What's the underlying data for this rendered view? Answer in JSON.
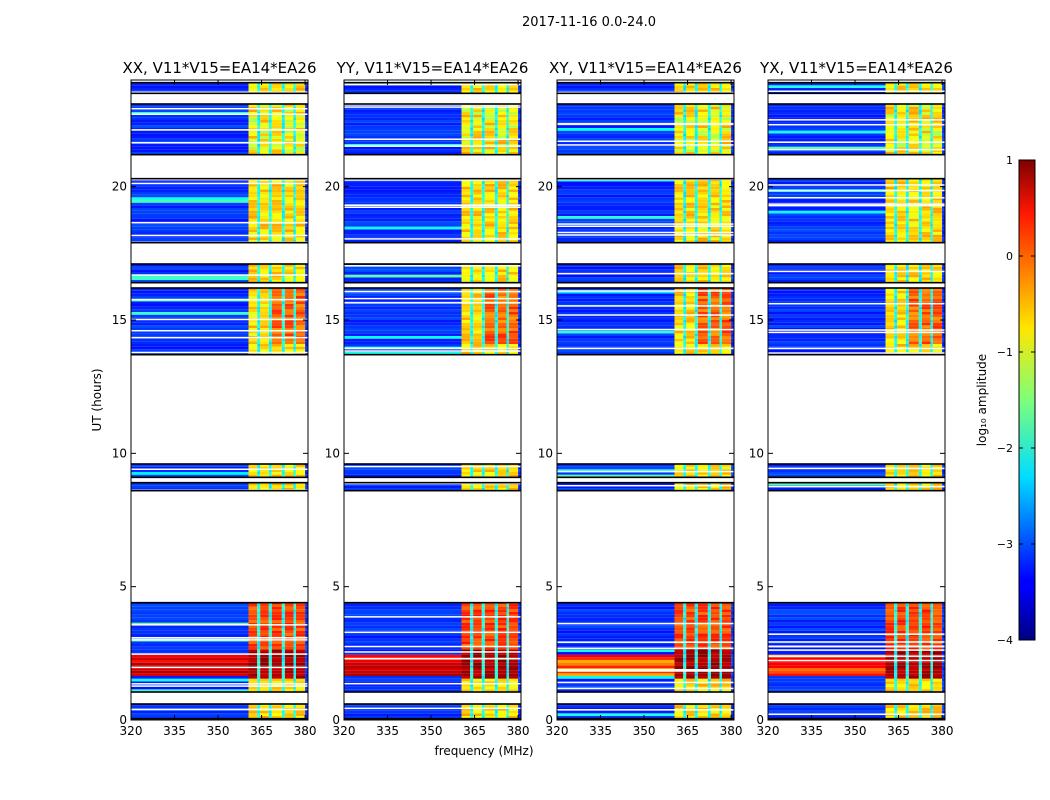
{
  "chart_data": {
    "type": "heatmap",
    "suptitle": "2017-11-16 0.0-24.0",
    "xlabel": "frequency (MHz)",
    "ylabel": "UT (hours)",
    "xlim": [
      320,
      381
    ],
    "ylim": [
      0,
      24
    ],
    "xticks": [
      320,
      335,
      350,
      365,
      380
    ],
    "xtick_labels": [
      "320",
      "335",
      "350",
      "365",
      "380"
    ],
    "yticks": [
      0,
      5,
      10,
      15,
      20
    ],
    "ytick_labels": [
      "0",
      "5",
      "10",
      "15",
      "20"
    ],
    "panels": [
      {
        "title": "XX, V11*V15=EA14*EA26"
      },
      {
        "title": "YY, V11*V15=EA14*EA26"
      },
      {
        "title": "XY, V11*V15=EA14*EA26"
      },
      {
        "title": "YX, V11*V15=EA14*EA26"
      }
    ],
    "colorbar": {
      "label": "log₁₀ amplitude",
      "range": [
        -4,
        1
      ],
      "ticks": [
        -4,
        -3,
        -2,
        -1,
        0,
        1
      ],
      "tick_labels": [
        "−4",
        "−3",
        "−2",
        "−1",
        "0",
        "1"
      ],
      "colormap": "jet"
    },
    "data_segments_ut_hours": [
      [
        0.05,
        0.6
      ],
      [
        1.05,
        4.4
      ],
      [
        8.6,
        8.9
      ],
      [
        9.1,
        9.6
      ],
      [
        13.7,
        16.2
      ],
      [
        16.4,
        17.1
      ],
      [
        17.9,
        20.3
      ],
      [
        21.2,
        23.1
      ],
      [
        23.5,
        23.9
      ]
    ],
    "strong_band_mhz": [
      360.5,
      380.0
    ]
  }
}
